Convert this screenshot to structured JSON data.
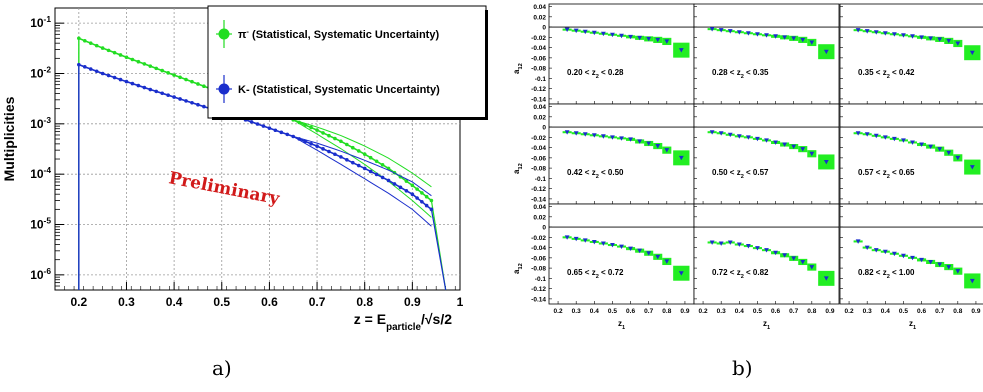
{
  "figure": {
    "caption_a": "a)",
    "caption_b": "b)"
  },
  "colors": {
    "pion": "#22dd22",
    "kaon": "#1a2ecc",
    "grid": "#9a9a9a",
    "preliminary": "#d11a1a",
    "asym_marker": "#1a2ecc",
    "asym_band": "#22ee22"
  },
  "chart_data": [
    {
      "type": "line",
      "panel": "a",
      "ylabel": "Multiplicities",
      "xlabel": "z = E_particle/√s/2",
      "xlabel_parts": {
        "main": "z = E",
        "sub": "particle",
        "rest": "/√s/2"
      },
      "annotation": "Preliminary",
      "xlim": [
        0.15,
        1.0
      ],
      "ylim": [
        5e-07,
        0.2
      ],
      "yscale": "log",
      "grid": true,
      "legend_position": "top-right",
      "x_ticks": [
        0.2,
        0.3,
        0.4,
        0.5,
        0.6,
        0.7,
        0.8,
        0.9,
        1.0
      ],
      "x_tick_labels": [
        "0.2",
        "0.3",
        "0.4",
        "0.5",
        "0.6",
        "0.7",
        "0.8",
        "0.9",
        "1"
      ],
      "y_ticks": [
        1e-06,
        1e-05,
        0.0001,
        0.001,
        0.01,
        0.1
      ],
      "y_tick_labels": [
        {
          "base": "10",
          "exp": "-6"
        },
        {
          "base": "10",
          "exp": "-5"
        },
        {
          "base": "10",
          "exp": "-4"
        },
        {
          "base": "10",
          "exp": "-3"
        },
        {
          "base": "10",
          "exp": "-2"
        },
        {
          "base": "10",
          "exp": "-1"
        }
      ],
      "series": [
        {
          "name": "π⁻ (Statistical, Systematic Uncertainty)",
          "legend_symbol": "π",
          "legend_sup": "-",
          "legend_rest": " (Statistical, Systematic Uncertainty)",
          "color": "#22dd22",
          "x": [
            0.2,
            0.25,
            0.3,
            0.35,
            0.4,
            0.45,
            0.5,
            0.55,
            0.6,
            0.65,
            0.7,
            0.75,
            0.8,
            0.85,
            0.9,
            0.94
          ],
          "y": [
            0.05,
            0.032,
            0.021,
            0.014,
            0.0093,
            0.0062,
            0.0041,
            0.0027,
            0.0018,
            0.0012,
            0.00075,
            0.00045,
            0.00025,
            0.00013,
            6e-05,
            3e-05
          ]
        },
        {
          "name": "K- (Statistical, Systematic Uncertainty)",
          "legend_symbol": "K-",
          "legend_sup": "",
          "legend_rest": " (Statistical, Systematic Uncertainty)",
          "color": "#1a2ecc",
          "x": [
            0.2,
            0.25,
            0.3,
            0.35,
            0.4,
            0.45,
            0.5,
            0.55,
            0.6,
            0.65,
            0.7,
            0.75,
            0.8,
            0.85,
            0.9,
            0.94
          ],
          "y": [
            0.015,
            0.01,
            0.0069,
            0.0048,
            0.0034,
            0.0024,
            0.0017,
            0.0012,
            0.00082,
            0.00056,
            0.00036,
            0.00022,
            0.00013,
            7.5e-05,
            4e-05,
            2e-05
          ]
        }
      ]
    },
    {
      "type": "scatter",
      "panel": "b",
      "ylabel": "a_12",
      "ylabel_parts": {
        "main": "a",
        "sub": "12"
      },
      "xlabel": "z_1",
      "xlabel_parts": {
        "main": "z",
        "sub": "1"
      },
      "grid_layout": "3x3",
      "xlim": [
        0.15,
        0.95
      ],
      "ylim": [
        -0.15,
        0.045
      ],
      "x_ticks": [
        0.2,
        0.3,
        0.4,
        0.5,
        0.6,
        0.7,
        0.8,
        0.9
      ],
      "x_tick_labels": [
        "0.2",
        "0.3",
        "0.4",
        "0.5",
        "0.6",
        "0.7",
        "0.8",
        "0.9"
      ],
      "x_tick_labels_last_col": [
        "0.2",
        "0.3",
        "0.4",
        "0.5",
        "0.6",
        "0.7",
        "0.8",
        "0.9"
      ],
      "y_ticks": [
        0.04,
        0.02,
        0,
        -0.02,
        -0.04,
        -0.06,
        -0.08,
        -0.1,
        -0.12,
        -0.14
      ],
      "y_tick_labels": [
        "0.04",
        "0.02",
        "0",
        "-0.02",
        "-0.04",
        "-0.06",
        "-0.08",
        "-0.1",
        "-0.12",
        "-0.14"
      ],
      "x": [
        0.25,
        0.3,
        0.35,
        0.4,
        0.45,
        0.5,
        0.55,
        0.6,
        0.65,
        0.7,
        0.75,
        0.8,
        0.88
      ],
      "panels": [
        {
          "label": "0.20 < z",
          "label_sub": "2",
          "label_rest": " < 0.28",
          "y": [
            -0.005,
            -0.007,
            -0.009,
            -0.011,
            -0.013,
            -0.015,
            -0.017,
            -0.019,
            -0.021,
            -0.023,
            -0.025,
            -0.028,
            -0.045
          ]
        },
        {
          "label": "0.28 < z",
          "label_sub": "2",
          "label_rest": " < 0.35",
          "y": [
            -0.004,
            -0.006,
            -0.008,
            -0.01,
            -0.012,
            -0.014,
            -0.016,
            -0.018,
            -0.02,
            -0.022,
            -0.025,
            -0.03,
            -0.048
          ]
        },
        {
          "label": "0.35 < z",
          "label_sub": "2",
          "label_rest": " < 0.42",
          "y": [
            -0.006,
            -0.008,
            -0.01,
            -0.012,
            -0.014,
            -0.016,
            -0.018,
            -0.02,
            -0.022,
            -0.024,
            -0.027,
            -0.032,
            -0.05
          ]
        },
        {
          "label": "0.42 < z",
          "label_sub": "2",
          "label_rest": " < 0.50",
          "y": [
            -0.01,
            -0.012,
            -0.014,
            -0.016,
            -0.018,
            -0.02,
            -0.022,
            -0.024,
            -0.028,
            -0.032,
            -0.037,
            -0.045,
            -0.06
          ]
        },
        {
          "label": "0.50 < z",
          "label_sub": "2",
          "label_rest": " < 0.57",
          "y": [
            -0.01,
            -0.012,
            -0.015,
            -0.018,
            -0.02,
            -0.023,
            -0.026,
            -0.03,
            -0.034,
            -0.038,
            -0.043,
            -0.052,
            -0.068
          ]
        },
        {
          "label": "0.57 < z",
          "label_sub": "2",
          "label_rest": " < 0.65",
          "y": [
            -0.012,
            -0.014,
            -0.017,
            -0.02,
            -0.023,
            -0.026,
            -0.03,
            -0.034,
            -0.038,
            -0.043,
            -0.05,
            -0.06,
            -0.078
          ]
        },
        {
          "label": "0.65 < z",
          "label_sub": "2",
          "label_rest": " < 0.72",
          "y": [
            -0.02,
            -0.023,
            -0.026,
            -0.029,
            -0.032,
            -0.035,
            -0.038,
            -0.042,
            -0.046,
            -0.051,
            -0.058,
            -0.067,
            -0.09
          ]
        },
        {
          "label": "0.72 < z",
          "label_sub": "2",
          "label_rest": " < 0.82",
          "y": [
            -0.03,
            -0.032,
            -0.03,
            -0.034,
            -0.037,
            -0.041,
            -0.045,
            -0.05,
            -0.055,
            -0.061,
            -0.068,
            -0.078,
            -0.1
          ]
        },
        {
          "label": "0.82 < z",
          "label_sub": "2",
          "label_rest": " < 1.00",
          "y": [
            -0.028,
            -0.04,
            -0.045,
            -0.048,
            -0.052,
            -0.056,
            -0.06,
            -0.064,
            -0.068,
            -0.073,
            -0.078,
            -0.086,
            -0.105
          ]
        }
      ]
    }
  ]
}
